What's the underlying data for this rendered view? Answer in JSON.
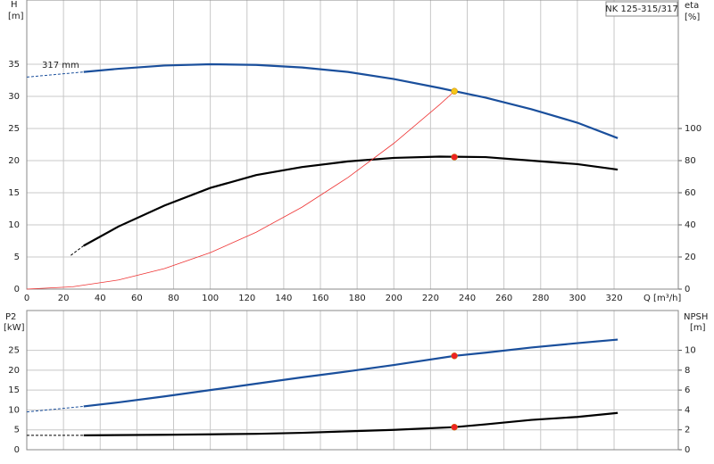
{
  "chart_data": [
    {
      "type": "line",
      "title": "NK 125-315/317",
      "annotation": "317 mm",
      "ylabel": "H",
      "yunit": "[m]",
      "y2label": "eta",
      "y2unit": "[%]",
      "xlabel": "Q [m³/h]",
      "xlim": [
        0,
        355
      ],
      "xticks": [
        0,
        20,
        40,
        60,
        80,
        100,
        120,
        140,
        160,
        180,
        200,
        220,
        240,
        260,
        280,
        300,
        320
      ],
      "ylim": [
        0,
        45
      ],
      "yticks": [
        0,
        5,
        10,
        15,
        20,
        25,
        30,
        35
      ],
      "y2lim": [
        0,
        180
      ],
      "y2ticks": [
        0,
        20,
        40,
        60,
        80,
        100
      ],
      "grid": true,
      "series": [
        {
          "color": "#1a4f9c",
          "dashed": true,
          "x": [
            0,
            31
          ],
          "values": [
            33.0,
            33.8
          ]
        },
        {
          "color": "#1a4f9c",
          "x": [
            31,
            50,
            75,
            100,
            125,
            150,
            175,
            200,
            225,
            250,
            275,
            300,
            322
          ],
          "values": [
            33.8,
            34.3,
            34.8,
            35.0,
            34.9,
            34.5,
            33.8,
            32.7,
            31.3,
            29.8,
            28.0,
            25.9,
            23.5
          ]
        },
        {
          "color": "#000000",
          "dashed": true,
          "axis": "y2",
          "x": [
            24,
            31
          ],
          "values": [
            21,
            27
          ]
        },
        {
          "color": "#000000",
          "axis": "y2",
          "x": [
            31,
            50,
            75,
            100,
            125,
            150,
            175,
            200,
            225,
            250,
            275,
            300,
            322
          ],
          "values": [
            27,
            39,
            52,
            63,
            71,
            76,
            79.5,
            81.7,
            82.5,
            82.2,
            80,
            77.8,
            74.4
          ]
        },
        {
          "color": "#ee3333",
          "thin": true,
          "x": [
            0,
            25,
            50,
            75,
            100,
            125,
            150,
            175,
            200,
            225,
            233
          ],
          "values": [
            0,
            0.36,
            1.42,
            3.19,
            5.67,
            8.86,
            12.76,
            17.37,
            22.69,
            28.72,
            30.8
          ]
        }
      ],
      "points": [
        {
          "x": 233,
          "y": 30.8,
          "color": "#f5c518"
        },
        {
          "x": 233,
          "y": 82.2,
          "color": "#ee2222",
          "axis": "y2"
        }
      ]
    },
    {
      "type": "line",
      "ylabel": "P2",
      "yunit": "[kW]",
      "y2label": "NPSH",
      "y2unit": "[m]",
      "xlim": [
        0,
        355
      ],
      "ylim": [
        0,
        35
      ],
      "yticks": [
        0,
        5,
        10,
        15,
        20,
        25
      ],
      "y2lim": [
        0,
        14
      ],
      "y2ticks": [
        0,
        2,
        4,
        6,
        8,
        10
      ],
      "grid": true,
      "series": [
        {
          "color": "#1a4f9c",
          "dashed": true,
          "x": [
            0,
            31
          ],
          "values": [
            9.5,
            10.9
          ]
        },
        {
          "color": "#1a4f9c",
          "x": [
            31,
            50,
            75,
            100,
            125,
            150,
            175,
            200,
            233,
            250,
            275,
            300,
            322
          ],
          "values": [
            10.9,
            11.9,
            13.4,
            15.0,
            16.6,
            18.2,
            19.7,
            21.3,
            23.6,
            24.4,
            25.7,
            26.8,
            27.7
          ]
        },
        {
          "color": "#000000",
          "dashed": true,
          "axis": "y2",
          "x": [
            0,
            31
          ],
          "values": [
            1.45,
            1.45
          ]
        },
        {
          "color": "#000000",
          "axis": "y2",
          "x": [
            31,
            75,
            100,
            125,
            150,
            175,
            200,
            233,
            250,
            275,
            300,
            322
          ],
          "values": [
            1.45,
            1.5,
            1.55,
            1.6,
            1.7,
            1.85,
            2.0,
            2.27,
            2.55,
            3.0,
            3.3,
            3.7
          ]
        }
      ],
      "points": [
        {
          "x": 233,
          "y": 23.6,
          "color": "#ee2222"
        },
        {
          "x": 233,
          "y": 2.27,
          "color": "#ee2222",
          "axis": "y2"
        }
      ]
    }
  ]
}
